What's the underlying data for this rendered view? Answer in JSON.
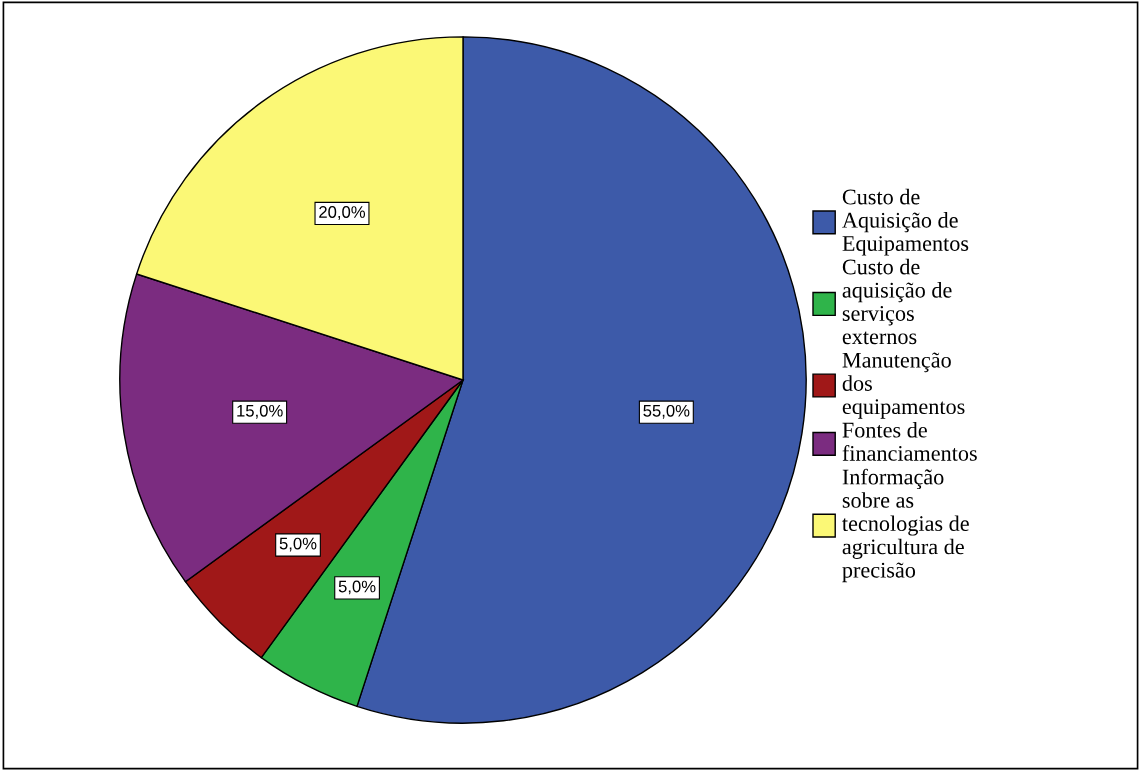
{
  "chart_data": {
    "type": "pie",
    "categories": [
      "Custo de\nAquisição de\nEquipamentos",
      "Custo de\naquisição de\nserviços\nexternos",
      "Manutenção\ndos\nequipamentos",
      "Fontes de\nfinanciamentos",
      "Informação\nsobre as\ntecnologias de\nagricultura de\nprecisão"
    ],
    "values": [
      55,
      5,
      5,
      15,
      20
    ],
    "value_labels": [
      "55,0%",
      "5,0%",
      "5,0%",
      "15,0%",
      "20,0%"
    ],
    "colors": [
      "#3d5aa9",
      "#2fb44a",
      "#a01818",
      "#7b2c80",
      "#fbf876"
    ],
    "legend": "right"
  }
}
